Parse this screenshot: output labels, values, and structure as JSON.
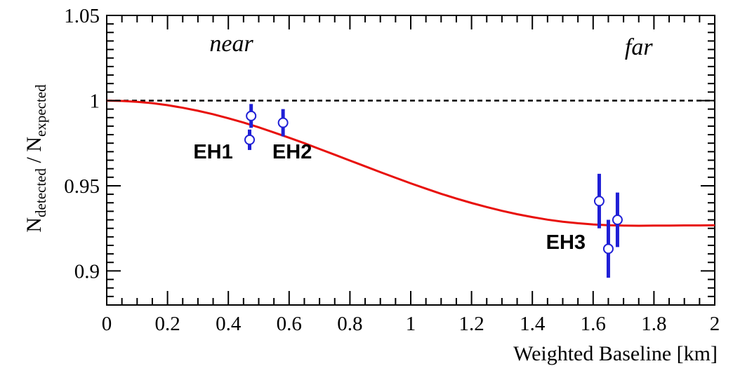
{
  "chart_data": {
    "type": "scatter",
    "xlabel": "Weighted Baseline [km]",
    "ylabel": {
      "base1": "N",
      "sub1": "detected",
      "sep": " / ",
      "base2": "N",
      "sub2": "expected"
    },
    "xlim": [
      0,
      2
    ],
    "ylim": [
      0.88,
      1.05
    ],
    "x_ticks": [
      0,
      0.2,
      0.4,
      0.6,
      0.8,
      1,
      1.2,
      1.4,
      1.6,
      1.8,
      2
    ],
    "x_tick_labels": [
      "0",
      "0.2",
      "0.4",
      "0.6",
      "0.8",
      "1",
      "1.2",
      "1.4",
      "1.6",
      "1.8",
      "2"
    ],
    "y_ticks": [
      0.9,
      0.95,
      1,
      1.05
    ],
    "y_tick_labels": [
      "0.9",
      "0.95",
      "1",
      "1.05"
    ],
    "reference_line": {
      "y": 1.0,
      "style": "dashed",
      "color": "#000000"
    },
    "series": [
      {
        "kind": "points",
        "marker": "open-circle",
        "color": "#1f1fd6",
        "points": [
          {
            "x": 0.47,
            "y": 0.977,
            "err": 0.006
          },
          {
            "x": 0.475,
            "y": 0.991,
            "err": 0.007
          },
          {
            "x": 0.58,
            "y": 0.987,
            "err": 0.008
          },
          {
            "x": 1.62,
            "y": 0.941,
            "err": 0.016
          },
          {
            "x": 1.65,
            "y": 0.913,
            "err": 0.017
          },
          {
            "x": 1.68,
            "y": 0.93,
            "err": 0.016
          }
        ]
      },
      {
        "kind": "curve",
        "color": "#e8100c",
        "x": [
          0,
          0.05,
          0.1,
          0.15,
          0.2,
          0.25,
          0.3,
          0.35,
          0.4,
          0.45,
          0.5,
          0.55,
          0.6,
          0.65,
          0.7,
          0.75,
          0.8,
          0.85,
          0.9,
          0.95,
          1.0,
          1.05,
          1.1,
          1.15,
          1.2,
          1.25,
          1.3,
          1.35,
          1.4,
          1.45,
          1.5,
          1.55,
          1.6,
          1.65,
          1.7,
          1.75,
          1.8,
          1.85,
          1.9,
          1.95,
          2.0
        ],
        "y": [
          1.0,
          0.9998,
          0.9993,
          0.9985,
          0.9973,
          0.9958,
          0.994,
          0.992,
          0.9896,
          0.9871,
          0.9843,
          0.9813,
          0.9782,
          0.975,
          0.9716,
          0.9682,
          0.9648,
          0.9614,
          0.958,
          0.9547,
          0.9514,
          0.9483,
          0.9453,
          0.9425,
          0.9399,
          0.9375,
          0.9353,
          0.9333,
          0.9316,
          0.9301,
          0.9289,
          0.928,
          0.9273,
          0.9268,
          0.9266,
          0.9265,
          0.9266,
          0.9266,
          0.9267,
          0.9267,
          0.9268
        ]
      }
    ],
    "annotations": [
      {
        "text": "near",
        "x": 0.41,
        "y": 1.029,
        "style": "italic"
      },
      {
        "text": "far",
        "x": 1.75,
        "y": 1.027,
        "style": "italic"
      },
      {
        "text": "EH1",
        "x": 0.35,
        "y": 0.966,
        "style": "bold"
      },
      {
        "text": "EH2",
        "x": 0.61,
        "y": 0.966,
        "style": "bold"
      },
      {
        "text": "EH3",
        "x": 1.51,
        "y": 0.913,
        "style": "bold"
      }
    ],
    "grid": false,
    "legend": "none"
  }
}
